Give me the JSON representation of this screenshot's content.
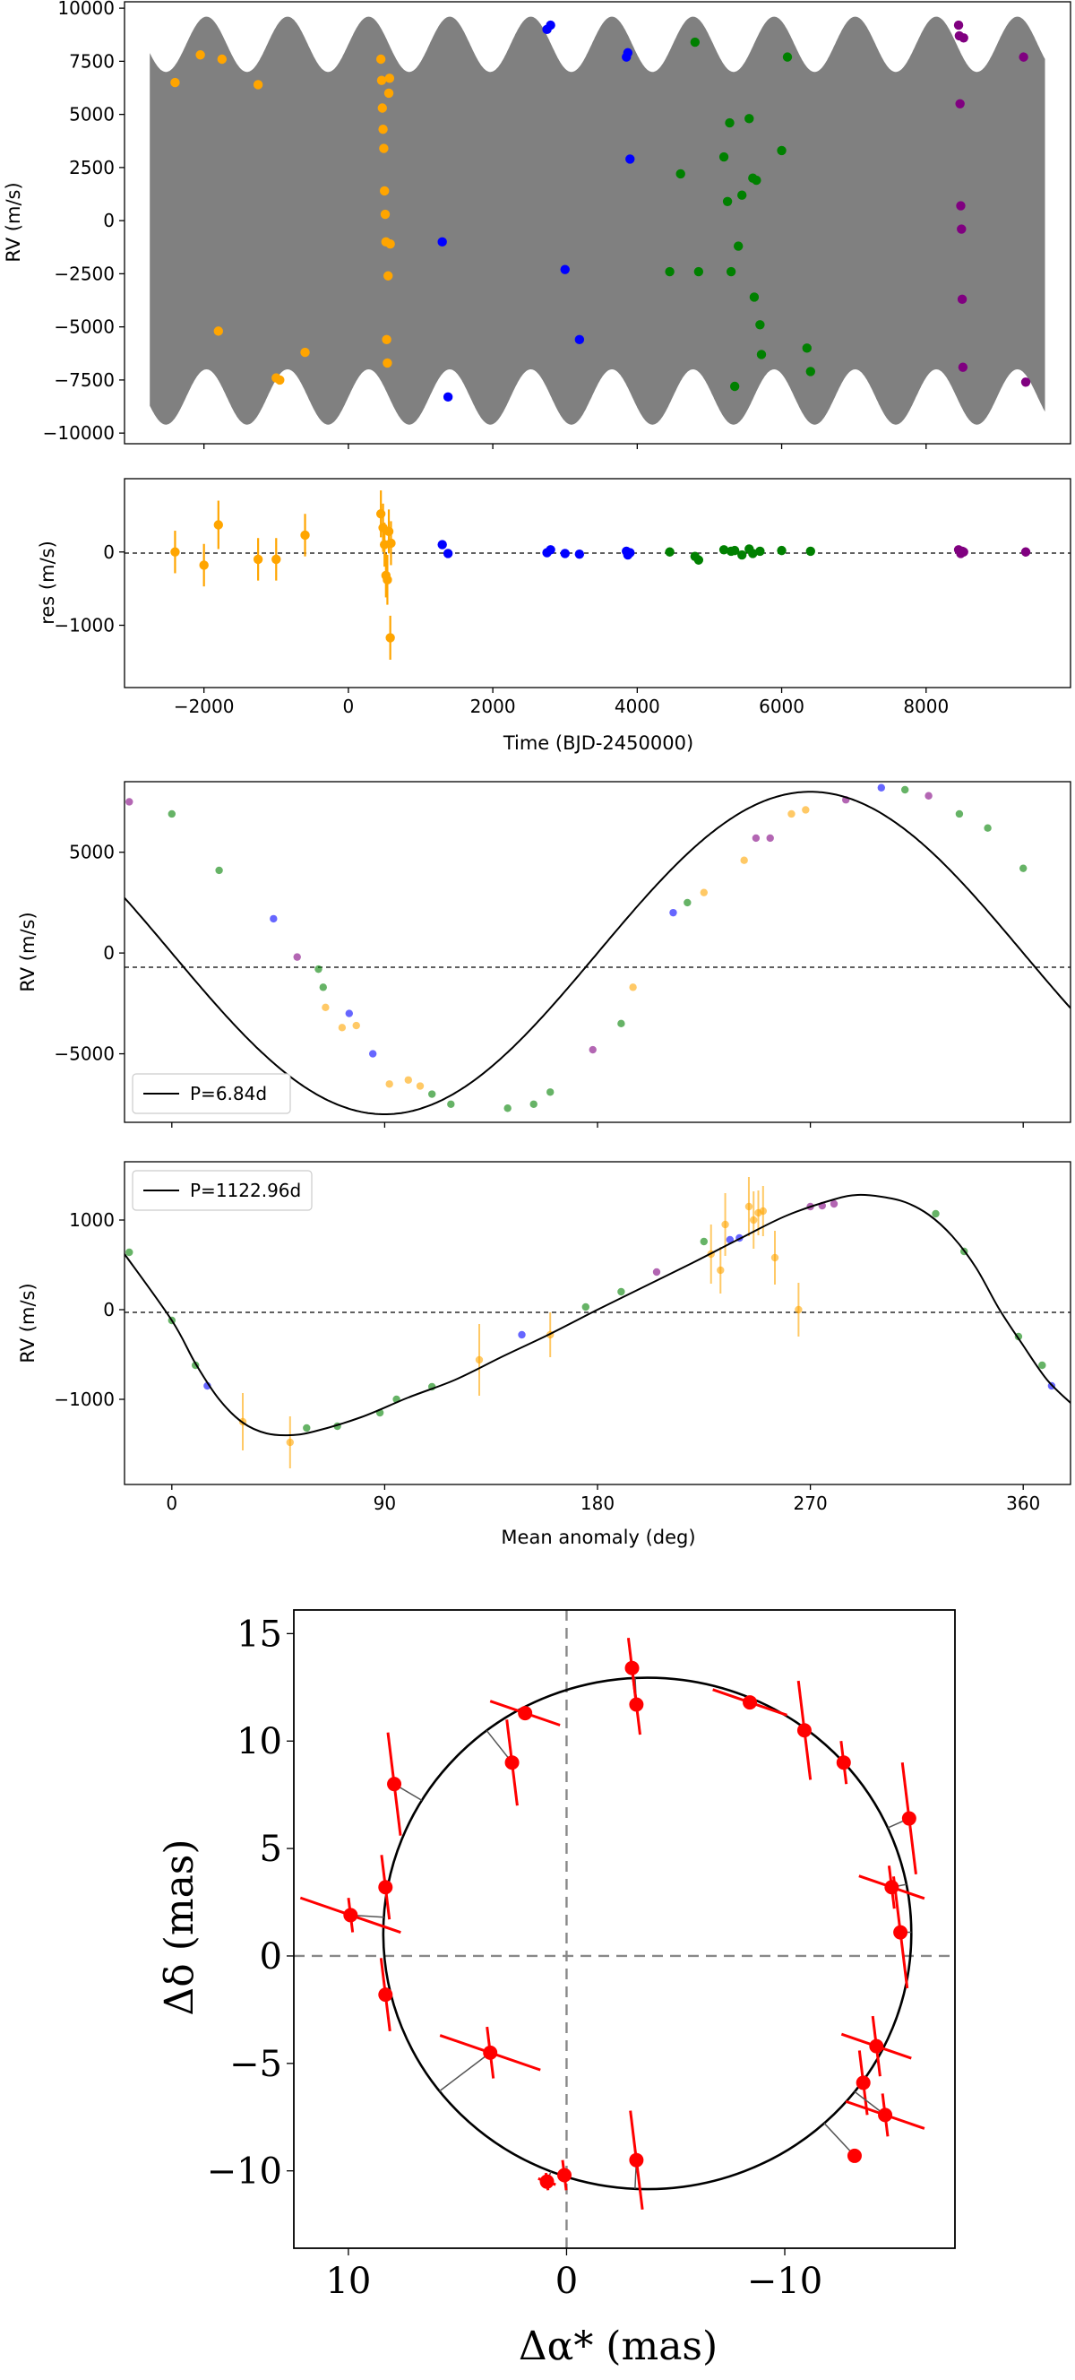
{
  "colors": {
    "Instrument 1": "#ffa500",
    "Instrument 2": "#0000ff",
    "Instrument 3": "#008000",
    "Instrument 4": "#800080",
    "model_band": "#808080",
    "astrometry": "#ff0000"
  },
  "chart_data": [
    {
      "id": "rv_time",
      "type": "scatter",
      "ylabel": "RV (m/s)",
      "xlim": [
        -3100,
        10000
      ],
      "ylim": [
        -10500,
        10300
      ],
      "xticks": [
        -2000,
        0,
        2000,
        4000,
        6000,
        8000
      ],
      "yticks": [
        10000,
        7500,
        5000,
        2500,
        0,
        -2500,
        -5000,
        -7500,
        -10000
      ],
      "yticklabels": [
        "10000",
        "7500",
        "5000",
        "2500",
        "0",
        "−2500",
        "−5000",
        "−7500",
        "−10000"
      ],
      "model": {
        "color": "model_band",
        "fast_amplitude": 8300,
        "slow_amplitude": 1300,
        "slow_period": 1122.96,
        "x_range": [
          -2750,
          9650
        ]
      },
      "series": [
        {
          "color_key": "Instrument 1",
          "x": [
            -2400,
            -2050,
            -1800,
            -1750,
            -1250,
            -1000,
            -950,
            -600,
            450,
            460,
            470,
            480,
            490,
            500,
            510,
            520,
            530,
            540,
            550,
            560,
            570,
            580
          ],
          "y": [
            6500,
            7800,
            -5200,
            7600,
            6400,
            -7400,
            -7500,
            -6200,
            7600,
            6600,
            5300,
            4300,
            3400,
            1400,
            300,
            -1000,
            -5600,
            -6700,
            -2600,
            6000,
            6700,
            -1100
          ]
        },
        {
          "color_key": "Instrument 2",
          "x": [
            1300,
            1380,
            2750,
            2800,
            3000,
            3200,
            3850,
            3870,
            3900
          ],
          "y": [
            -1000,
            -8300,
            9000,
            9200,
            -2300,
            -5600,
            7700,
            7900,
            2900
          ]
        },
        {
          "color_key": "Instrument 3",
          "x": [
            4450,
            4600,
            4800,
            4850,
            5200,
            5250,
            5280,
            5300,
            5350,
            5400,
            5450,
            5550,
            5600,
            5620,
            5650,
            5700,
            5720,
            6000,
            6080,
            6350,
            6400
          ],
          "y": [
            -2400,
            2200,
            8400,
            -2400,
            3000,
            900,
            4600,
            -2400,
            -7800,
            -1200,
            1200,
            4800,
            2000,
            -3600,
            1900,
            -4900,
            -6300,
            3300,
            7700,
            -6000,
            -7100
          ]
        },
        {
          "color_key": "Instrument 4",
          "x": [
            8450,
            8460,
            8470,
            8480,
            8490,
            8500,
            8510,
            8520,
            9350,
            9380
          ],
          "y": [
            9200,
            8700,
            5500,
            700,
            -400,
            -3700,
            -6900,
            8600,
            7700,
            -7600
          ]
        }
      ]
    },
    {
      "id": "residuals",
      "type": "scatter",
      "ylabel": "res (m/s)",
      "xlabel": "Time (BJD-2450000)",
      "xlim": [
        -3100,
        10000
      ],
      "ylim": [
        -1850,
        1000
      ],
      "xticks": [
        -2000,
        0,
        2000,
        4000,
        6000,
        8000
      ],
      "xticklabels": [
        "−2000",
        "0",
        "2000",
        "4000",
        "6000",
        "8000"
      ],
      "yticks": [
        0,
        -1000
      ],
      "yticklabels": [
        "0",
        "−1000"
      ],
      "series": [
        {
          "color_key": "Instrument 1",
          "x": [
            -2400,
            -2000,
            -1800,
            -1250,
            -1000,
            -600,
            450,
            480,
            500,
            520,
            540,
            560,
            580,
            590
          ],
          "y": [
            0,
            -180,
            370,
            -100,
            -100,
            230,
            520,
            330,
            100,
            -320,
            -380,
            280,
            -1170,
            120
          ],
          "err": [
            290,
            290,
            330,
            290,
            290,
            290,
            320,
            330,
            300,
            300,
            340,
            300,
            300,
            300
          ]
        },
        {
          "color_key": "Instrument 2",
          "x": [
            1300,
            1380,
            2750,
            2800,
            3000,
            3200,
            3850,
            3870,
            3900
          ],
          "y": [
            100,
            -20,
            -10,
            30,
            -20,
            -30,
            10,
            -40,
            -10
          ],
          "err": [
            0,
            0,
            0,
            0,
            0,
            0,
            0,
            0,
            0
          ]
        },
        {
          "color_key": "Instrument 3",
          "x": [
            4450,
            4800,
            4850,
            5200,
            5300,
            5350,
            5450,
            5550,
            5600,
            5700,
            6000,
            6400
          ],
          "y": [
            0,
            -60,
            -110,
            30,
            10,
            20,
            -40,
            40,
            -20,
            10,
            20,
            10
          ],
          "err": [
            0,
            0,
            0,
            0,
            0,
            0,
            0,
            0,
            0,
            0,
            0,
            0
          ]
        },
        {
          "color_key": "Instrument 4",
          "x": [
            8450,
            8480,
            8500,
            8520,
            9380
          ],
          "y": [
            30,
            -20,
            10,
            0,
            0
          ],
          "err": [
            0,
            0,
            0,
            0,
            0
          ]
        }
      ]
    },
    {
      "id": "phase_b",
      "type": "line",
      "ylabel": "RV (m/s)",
      "legend": "P=6.84d",
      "legend_position": "lower left",
      "xlim": [
        -20,
        380
      ],
      "ylim": [
        -8400,
        8500
      ],
      "yticks": [
        5000,
        0,
        -5000
      ],
      "yticklabels": [
        "5000",
        "0",
        "−5000"
      ],
      "model": {
        "K": 8000,
        "phase_offset": 90
      },
      "points": {
        "x": [
          -18,
          0,
          20,
          43,
          53,
          62,
          64,
          65,
          72,
          75,
          78,
          85,
          92,
          100,
          105,
          110,
          118,
          142,
          153,
          160,
          178,
          190,
          195,
          212,
          218,
          225,
          242,
          247,
          253,
          262,
          268,
          285,
          300,
          310,
          320,
          333,
          345,
          360
        ],
        "y": [
          7500,
          6900,
          4100,
          1700,
          -200,
          -800,
          -1700,
          -2700,
          -3700,
          -3000,
          -3600,
          -5000,
          -6500,
          -6300,
          -6600,
          -7000,
          -7500,
          -7700,
          -7500,
          -6900,
          -4800,
          -3500,
          -1700,
          2000,
          2500,
          3000,
          4600,
          5700,
          5700,
          6900,
          7100,
          7600,
          8200,
          8100,
          7800,
          6900,
          6200,
          4200
        ],
        "colors": [
          "Instrument 4",
          "Instrument 3",
          "Instrument 3",
          "Instrument 2",
          "Instrument 4",
          "Instrument 3",
          "Instrument 3",
          "Instrument 1",
          "Instrument 1",
          "Instrument 2",
          "Instrument 1",
          "Instrument 2",
          "Instrument 1",
          "Instrument 1",
          "Instrument 1",
          "Instrument 3",
          "Instrument 3",
          "Instrument 3",
          "Instrument 3",
          "Instrument 3",
          "Instrument 4",
          "Instrument 3",
          "Instrument 1",
          "Instrument 2",
          "Instrument 3",
          "Instrument 1",
          "Instrument 1",
          "Instrument 4",
          "Instrument 4",
          "Instrument 1",
          "Instrument 1",
          "Instrument 4",
          "Instrument 2",
          "Instrument 3",
          "Instrument 4",
          "Instrument 3",
          "Instrument 3",
          "Instrument 3"
        ]
      }
    },
    {
      "id": "phase_c",
      "type": "line",
      "ylabel": "RV (m/s)",
      "xlabel": "Mean anomaly (deg)",
      "legend": "P=1122.96d",
      "legend_position": "upper left",
      "xlim": [
        -20,
        380
      ],
      "ylim": [
        -1950,
        1650
      ],
      "xticks": [
        0,
        90,
        180,
        270,
        360
      ],
      "yticks": [
        1000,
        0,
        -1000
      ],
      "yticklabels": [
        "1000",
        "0",
        "−1000"
      ],
      "model": [
        [
          -20,
          620
        ],
        [
          0,
          -120
        ],
        [
          10,
          -600
        ],
        [
          20,
          -1000
        ],
        [
          30,
          -1260
        ],
        [
          40,
          -1380
        ],
        [
          50,
          -1400
        ],
        [
          60,
          -1360
        ],
        [
          80,
          -1200
        ],
        [
          100,
          -980
        ],
        [
          120,
          -780
        ],
        [
          140,
          -520
        ],
        [
          160,
          -270
        ],
        [
          180,
          0
        ],
        [
          200,
          260
        ],
        [
          220,
          520
        ],
        [
          240,
          790
        ],
        [
          260,
          1050
        ],
        [
          280,
          1230
        ],
        [
          290,
          1280
        ],
        [
          300,
          1260
        ],
        [
          310,
          1200
        ],
        [
          320,
          1060
        ],
        [
          330,
          820
        ],
        [
          340,
          470
        ],
        [
          350,
          0
        ],
        [
          360,
          -400
        ],
        [
          370,
          -780
        ],
        [
          380,
          -1040
        ]
      ],
      "points": {
        "x": [
          -18,
          0,
          10,
          15,
          30,
          50,
          57,
          70,
          88,
          95,
          110,
          130,
          148,
          160,
          175,
          190,
          205,
          225,
          228,
          232,
          234,
          236,
          240,
          244,
          246,
          248,
          250,
          255,
          265,
          270,
          275,
          280,
          323,
          335,
          358,
          368,
          372
        ],
        "y": [
          640,
          -120,
          -620,
          -850,
          -1250,
          -1480,
          -1320,
          -1300,
          -1150,
          -1000,
          -860,
          -560,
          -280,
          -280,
          30,
          200,
          420,
          760,
          620,
          440,
          950,
          780,
          800,
          1150,
          1000,
          1080,
          1100,
          580,
          0,
          1150,
          1160,
          1180,
          1070,
          650,
          -300,
          -620,
          -850
        ],
        "err": [
          0,
          0,
          0,
          0,
          320,
          290,
          0,
          0,
          0,
          0,
          0,
          400,
          0,
          250,
          0,
          0,
          0,
          0,
          330,
          260,
          350,
          0,
          0,
          330,
          320,
          250,
          280,
          300,
          300,
          0,
          0,
          0,
          0,
          0,
          0,
          0,
          0
        ],
        "colors": [
          "Instrument 3",
          "Instrument 3",
          "Instrument 3",
          "Instrument 2",
          "Instrument 1",
          "Instrument 1",
          "Instrument 3",
          "Instrument 3",
          "Instrument 3",
          "Instrument 3",
          "Instrument 3",
          "Instrument 1",
          "Instrument 2",
          "Instrument 1",
          "Instrument 3",
          "Instrument 3",
          "Instrument 4",
          "Instrument 3",
          "Instrument 1",
          "Instrument 1",
          "Instrument 1",
          "Instrument 2",
          "Instrument 2",
          "Instrument 1",
          "Instrument 1",
          "Instrument 1",
          "Instrument 1",
          "Instrument 1",
          "Instrument 1",
          "Instrument 4",
          "Instrument 4",
          "Instrument 4",
          "Instrument 3",
          "Instrument 3",
          "Instrument 3",
          "Instrument 3",
          "Instrument 2"
        ]
      }
    },
    {
      "id": "astrometry",
      "type": "scatter",
      "xlabel": "Δα* (mas)",
      "ylabel": "Δδ (mas)",
      "xlim": [
        12.5,
        -17.8
      ],
      "ylim": [
        -13.6,
        16.1
      ],
      "xticks": [
        10,
        0,
        -10
      ],
      "xticklabels": [
        "10",
        "0",
        "−10"
      ],
      "yticks": [
        15,
        10,
        5,
        0,
        -5,
        -10
      ],
      "yticklabels": [
        "15",
        "10",
        "5",
        "0",
        "−5",
        "−10"
      ],
      "orbit": {
        "center": [
          -3.7,
          1.05
        ],
        "radius_x": 12.1,
        "radius_y": 11.9
      },
      "points": {
        "x": [
          9.9,
          8.3,
          8.3,
          7.9,
          2.5,
          1.9,
          -3.0,
          -3.2,
          -8.4,
          -10.9,
          -12.7,
          -15.7,
          -14.9,
          -15.3,
          -14.2,
          -13.6,
          -14.6,
          -13.2,
          -3.2,
          0.9,
          0.1,
          3.5
        ],
        "y": [
          1.9,
          3.2,
          -1.8,
          8.0,
          9.0,
          11.3,
          13.4,
          11.7,
          11.8,
          10.5,
          9.0,
          6.4,
          3.2,
          1.1,
          -4.2,
          -5.9,
          -7.4,
          -9.3,
          -9.5,
          -10.5,
          -10.2,
          -4.5
        ],
        "err_x": [
          2.3,
          0,
          0,
          0,
          0,
          1.6,
          0,
          0,
          1.7,
          0,
          0,
          0,
          1.5,
          0,
          1.6,
          0,
          1.8,
          0,
          0,
          0.4,
          0,
          2.3
        ],
        "err_y": [
          0.8,
          1.5,
          1.7,
          2.4,
          2.0,
          0.3,
          1.4,
          1.4,
          0.3,
          2.3,
          1.0,
          2.6,
          1.0,
          2.6,
          1.4,
          1.5,
          1.0,
          0,
          2.3,
          0.4,
          0.7,
          1.2
        ]
      }
    }
  ]
}
